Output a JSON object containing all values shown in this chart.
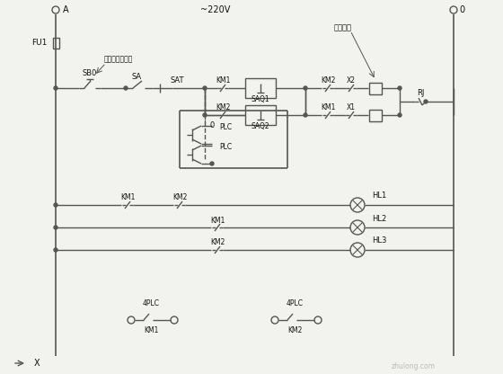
{
  "bg_color": "#f2f2ee",
  "line_color": "#555555",
  "text_color": "#111111",
  "title_voltage": "~220V",
  "label_A": "A",
  "label_0": "0",
  "label_FU1": "FU1",
  "label_SA": "SA",
  "label_SAT": "SAT",
  "label_SAQ1": "SAQ1",
  "label_SAQ2": "SAQ2",
  "label_KM1": "KM1",
  "label_KM2": "KM2",
  "label_X1": "X1",
  "label_X2": "X2",
  "label_RJ": "RJ",
  "label_SB0": "SB0",
  "label_PLC": "PLC",
  "label_HL1": "HL1",
  "label_HL2": "HL2",
  "label_HL3": "HL3",
  "label_4PLC": "4PLC",
  "label_KM1_bot": "KM1",
  "label_KM2_bot": "KM2",
  "label_limit": "限位开关",
  "label_relay": "继电器控制开关",
  "label_arrow_x": "X",
  "fig_width": 5.6,
  "fig_height": 4.16,
  "dpi": 100
}
